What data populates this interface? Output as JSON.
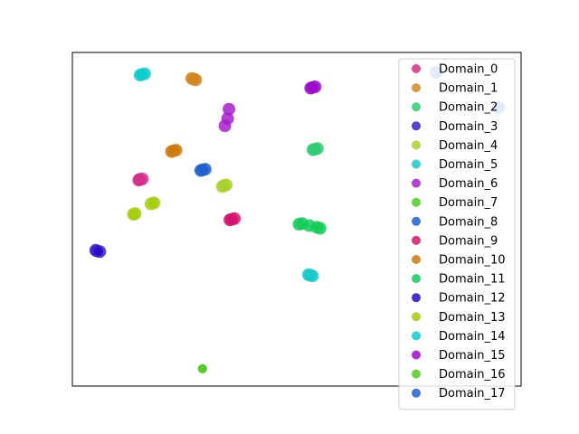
{
  "chart_data": {
    "type": "scatter",
    "title": "",
    "xlabel": "",
    "ylabel": "",
    "xlim": [
      0,
      100
    ],
    "ylim": [
      0,
      100
    ],
    "grid": false,
    "axis_ticks": false,
    "legend_placement": "top-right",
    "series": [
      {
        "name": "Domain_0",
        "color": "#d62e8a",
        "points": [
          [
            15.0,
            62.0
          ],
          [
            15.6,
            62.1
          ],
          [
            14.8,
            61.7
          ]
        ]
      },
      {
        "name": "Domain_1",
        "color": "#d4861f",
        "points": [
          [
            27.0,
            92.0
          ],
          [
            27.5,
            91.8
          ],
          [
            26.6,
            92.2
          ]
        ]
      },
      {
        "name": "Domain_2",
        "color": "#2ecc71",
        "points": [
          [
            54.0,
            71.0
          ],
          [
            54.6,
            71.2
          ],
          [
            53.6,
            70.8
          ]
        ]
      },
      {
        "name": "Domain_3",
        "color": "#3d1fcc",
        "points": [
          [
            5.5,
            40.5
          ],
          [
            6.1,
            40.3
          ],
          [
            5.2,
            40.7
          ]
        ]
      },
      {
        "name": "Domain_4",
        "color": "#a8d12b",
        "points": [
          [
            33.8,
            60.1
          ],
          [
            34.3,
            60.3
          ],
          [
            33.4,
            59.8
          ]
        ]
      },
      {
        "name": "Domain_5",
        "color": "#17c9c9",
        "points": [
          [
            53.0,
            33.2
          ],
          [
            53.5,
            33.0
          ],
          [
            52.6,
            33.4
          ]
        ]
      },
      {
        "name": "Domain_6",
        "color": "#a81fcc",
        "points": [
          [
            34.0,
            78.0
          ],
          [
            34.6,
            80.2
          ],
          [
            34.9,
            83.0
          ]
        ]
      },
      {
        "name": "Domain_7",
        "color": "#4ccc1f",
        "points": [
          [
            29.0,
            5.2
          ]
        ]
      },
      {
        "name": "Domain_8",
        "color": "#1f5fd1",
        "points": [
          [
            29.0,
            64.8
          ],
          [
            29.6,
            65.0
          ],
          [
            28.6,
            64.6
          ]
        ]
      },
      {
        "name": "Domain_9",
        "color": "#d6126e",
        "points": [
          [
            35.5,
            50.0
          ],
          [
            36.1,
            50.2
          ],
          [
            35.1,
            49.8
          ]
        ]
      },
      {
        "name": "Domain_10",
        "color": "#cc7a0a",
        "points": [
          [
            22.5,
            70.5
          ],
          [
            23.1,
            70.7
          ],
          [
            22.1,
            70.3
          ]
        ]
      },
      {
        "name": "Domain_11",
        "color": "#12cc59",
        "points": [
          [
            50.5,
            48.5
          ],
          [
            51.2,
            48.7
          ],
          [
            55.2,
            47.3
          ],
          [
            54.5,
            47.6
          ],
          [
            52.8,
            48.1
          ]
        ]
      },
      {
        "name": "Domain_12",
        "color": "#2a0acc",
        "points": [
          [
            5.8,
            40.3
          ]
        ]
      },
      {
        "name": "Domain_13",
        "color": "#a3cc0a",
        "points": [
          [
            14.0,
            51.7
          ],
          [
            17.5,
            54.6
          ],
          [
            18.2,
            54.9
          ],
          [
            13.6,
            51.5
          ]
        ]
      },
      {
        "name": "Domain_14",
        "color": "#0acccc",
        "points": [
          [
            15.5,
            93.4
          ],
          [
            16.1,
            93.6
          ],
          [
            15.1,
            93.2
          ]
        ]
      },
      {
        "name": "Domain_15",
        "color": "#9c0acc",
        "points": [
          [
            53.5,
            89.5
          ],
          [
            54.1,
            89.7
          ],
          [
            53.1,
            89.3
          ]
        ]
      },
      {
        "name": "Domain_16",
        "color": "#4ccc1f",
        "points": [
          [
            29.0,
            5.2
          ]
        ]
      },
      {
        "name": "Domain_17",
        "color": "#1f5fd1",
        "points": [
          [
            81.0,
            94.0
          ],
          [
            95.0,
            83.5
          ]
        ]
      }
    ]
  }
}
